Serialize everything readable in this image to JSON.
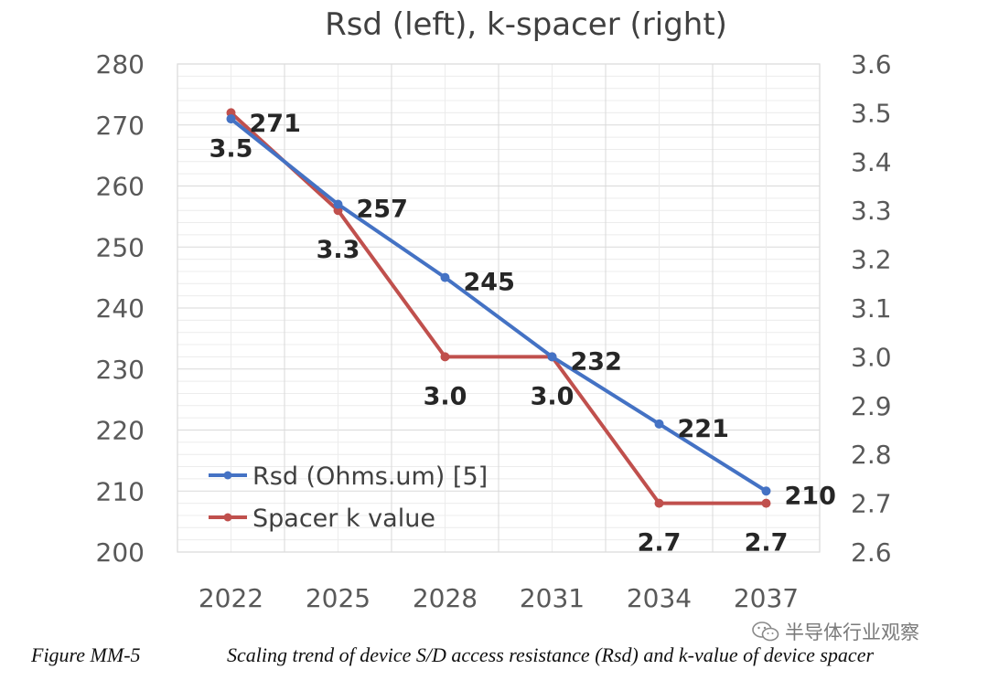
{
  "chart_data": {
    "type": "line",
    "title": "Rsd (left), k-spacer (right)",
    "categories": [
      "2022",
      "2025",
      "2028",
      "2031",
      "2034",
      "2037"
    ],
    "y_left": {
      "min": 200,
      "max": 280,
      "step": 10,
      "ticks": [
        "200",
        "210",
        "220",
        "230",
        "240",
        "250",
        "260",
        "270",
        "280"
      ]
    },
    "y_right": {
      "min": 2.6,
      "max": 3.6,
      "step": 0.1,
      "ticks": [
        "2.6",
        "2.7",
        "2.8",
        "2.9",
        "3.0",
        "3.1",
        "3.2",
        "3.3",
        "3.4",
        "3.5",
        "3.6"
      ]
    },
    "series": [
      {
        "name": "Rsd (Ohms.um) [5]",
        "axis": "left",
        "color": "#4472C4",
        "values": [
          271,
          257,
          245,
          232,
          221,
          210
        ],
        "labels": [
          "271",
          "257",
          "245",
          "232",
          "221",
          "210"
        ]
      },
      {
        "name": "Spacer k value",
        "axis": "right",
        "color": "#C0504D",
        "values": [
          3.5,
          3.3,
          3.0,
          3.0,
          2.7,
          2.7
        ],
        "labels": [
          "3.5",
          "3.3",
          "3.0",
          "3.0",
          "2.7",
          "2.7"
        ]
      }
    ],
    "legend_position": "bottom-left",
    "grid": true
  },
  "caption": {
    "label": "Figure MM-5",
    "text": "Scaling trend of device S/D access resistance (Rsd) and k-value of device spacer"
  },
  "watermark": {
    "text": "半导体行业观察",
    "icon": "wechat-icon"
  }
}
